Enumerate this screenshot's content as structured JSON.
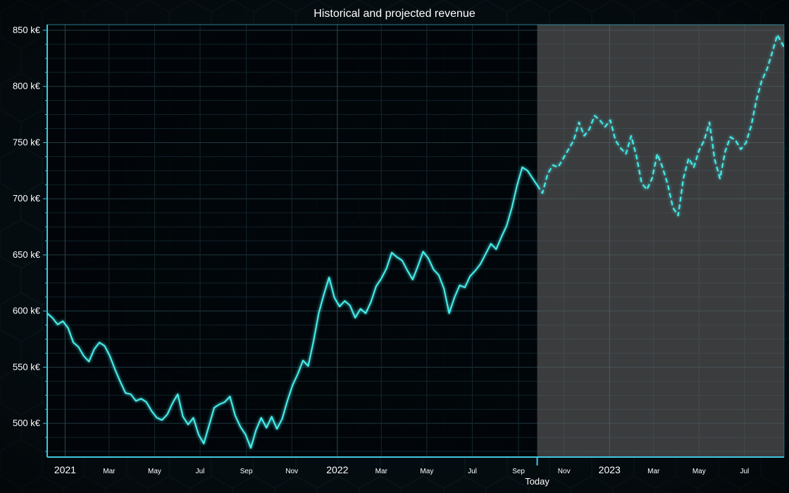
{
  "chart_data": {
    "type": "line",
    "title": "Historical and projected revenue",
    "xlabel": "",
    "ylabel": "",
    "ylim": [
      470,
      855
    ],
    "xlim": [
      "2020-12-08",
      "2023-08-23"
    ],
    "y_ticks": [
      "500 k€",
      "550 k€",
      "600 k€",
      "650 k€",
      "700 k€",
      "750 k€",
      "800 k€",
      "850 k€"
    ],
    "y_tick_values": [
      500,
      550,
      600,
      650,
      700,
      750,
      800,
      850
    ],
    "x_ticks": [
      {
        "date": "2021-01-01",
        "label": "2021",
        "major": true
      },
      {
        "date": "2021-03-01",
        "label": "Mar",
        "major": false
      },
      {
        "date": "2021-05-01",
        "label": "May",
        "major": false
      },
      {
        "date": "2021-07-01",
        "label": "Jul",
        "major": false
      },
      {
        "date": "2021-09-01",
        "label": "Sep",
        "major": false
      },
      {
        "date": "2021-11-01",
        "label": "Nov",
        "major": false
      },
      {
        "date": "2022-01-01",
        "label": "2022",
        "major": true
      },
      {
        "date": "2022-03-01",
        "label": "Mar",
        "major": false
      },
      {
        "date": "2022-05-01",
        "label": "May",
        "major": false
      },
      {
        "date": "2022-07-01",
        "label": "Jul",
        "major": false
      },
      {
        "date": "2022-09-01",
        "label": "Sep",
        "major": false
      },
      {
        "date": "2022-11-01",
        "label": "Nov",
        "major": false
      },
      {
        "date": "2023-01-01",
        "label": "2023",
        "major": true
      },
      {
        "date": "2023-03-01",
        "label": "Mar",
        "major": false
      },
      {
        "date": "2023-05-01",
        "label": "May",
        "major": false
      },
      {
        "date": "2023-07-01",
        "label": "Jul",
        "major": false
      }
    ],
    "today": {
      "date": "2022-09-26",
      "label": "Today"
    },
    "grid": true,
    "legend": "none",
    "series": [
      {
        "role": "historical",
        "style": "solid",
        "color": "#46f0ee",
        "points": [
          [
            "2020-12-08",
            598
          ],
          [
            "2020-12-15",
            594
          ],
          [
            "2020-12-22",
            588
          ],
          [
            "2020-12-29",
            591
          ],
          [
            "2021-01-05",
            585
          ],
          [
            "2021-01-12",
            572
          ],
          [
            "2021-01-19",
            568
          ],
          [
            "2021-01-26",
            560
          ],
          [
            "2021-02-02",
            555
          ],
          [
            "2021-02-09",
            566
          ],
          [
            "2021-02-16",
            572
          ],
          [
            "2021-02-23",
            569
          ],
          [
            "2021-03-02",
            560
          ],
          [
            "2021-03-09",
            548
          ],
          [
            "2021-03-16",
            537
          ],
          [
            "2021-03-23",
            527
          ],
          [
            "2021-03-30",
            526
          ],
          [
            "2021-04-06",
            520
          ],
          [
            "2021-04-13",
            522
          ],
          [
            "2021-04-20",
            519
          ],
          [
            "2021-04-27",
            511
          ],
          [
            "2021-05-04",
            505
          ],
          [
            "2021-05-11",
            503
          ],
          [
            "2021-05-18",
            508
          ],
          [
            "2021-05-25",
            518
          ],
          [
            "2021-06-01",
            526
          ],
          [
            "2021-06-08",
            506
          ],
          [
            "2021-06-15",
            499
          ],
          [
            "2021-06-22",
            505
          ],
          [
            "2021-06-29",
            490
          ],
          [
            "2021-07-06",
            482
          ],
          [
            "2021-07-13",
            498
          ],
          [
            "2021-07-20",
            514
          ],
          [
            "2021-07-27",
            517
          ],
          [
            "2021-08-03",
            519
          ],
          [
            "2021-08-10",
            524
          ],
          [
            "2021-08-17",
            507
          ],
          [
            "2021-08-24",
            497
          ],
          [
            "2021-08-31",
            490
          ],
          [
            "2021-09-07",
            478
          ],
          [
            "2021-09-14",
            494
          ],
          [
            "2021-09-21",
            505
          ],
          [
            "2021-09-28",
            496
          ],
          [
            "2021-10-05",
            506
          ],
          [
            "2021-10-12",
            495
          ],
          [
            "2021-10-19",
            504
          ],
          [
            "2021-10-26",
            520
          ],
          [
            "2021-11-02",
            534
          ],
          [
            "2021-11-09",
            544
          ],
          [
            "2021-11-16",
            556
          ],
          [
            "2021-11-23",
            551
          ],
          [
            "2021-11-30",
            573
          ],
          [
            "2021-12-07",
            598
          ],
          [
            "2021-12-14",
            615
          ],
          [
            "2021-12-21",
            630
          ],
          [
            "2021-12-28",
            612
          ],
          [
            "2022-01-04",
            604
          ],
          [
            "2022-01-11",
            609
          ],
          [
            "2022-01-18",
            605
          ],
          [
            "2022-01-25",
            594
          ],
          [
            "2022-02-01",
            602
          ],
          [
            "2022-02-08",
            598
          ],
          [
            "2022-02-15",
            608
          ],
          [
            "2022-02-22",
            622
          ],
          [
            "2022-03-01",
            629
          ],
          [
            "2022-03-08",
            638
          ],
          [
            "2022-03-15",
            652
          ],
          [
            "2022-03-22",
            648
          ],
          [
            "2022-03-29",
            645
          ],
          [
            "2022-04-05",
            636
          ],
          [
            "2022-04-12",
            628
          ],
          [
            "2022-04-19",
            640
          ],
          [
            "2022-04-26",
            653
          ],
          [
            "2022-05-03",
            647
          ],
          [
            "2022-05-10",
            637
          ],
          [
            "2022-05-17",
            632
          ],
          [
            "2022-05-24",
            620
          ],
          [
            "2022-05-31",
            598
          ],
          [
            "2022-06-07",
            612
          ],
          [
            "2022-06-14",
            623
          ],
          [
            "2022-06-21",
            621
          ],
          [
            "2022-06-28",
            631
          ],
          [
            "2022-07-05",
            636
          ],
          [
            "2022-07-12",
            642
          ],
          [
            "2022-07-19",
            651
          ],
          [
            "2022-07-26",
            660
          ],
          [
            "2022-08-02",
            655
          ],
          [
            "2022-08-09",
            666
          ],
          [
            "2022-08-16",
            676
          ],
          [
            "2022-08-23",
            692
          ],
          [
            "2022-08-30",
            712
          ],
          [
            "2022-09-06",
            728
          ],
          [
            "2022-09-13",
            725
          ],
          [
            "2022-09-20",
            718
          ],
          [
            "2022-09-26",
            712
          ]
        ]
      },
      {
        "role": "projected",
        "style": "dashed",
        "color": "#46f0ee",
        "points": [
          [
            "2022-09-26",
            712
          ],
          [
            "2022-10-03",
            705
          ],
          [
            "2022-10-10",
            722
          ],
          [
            "2022-10-17",
            730
          ],
          [
            "2022-10-24",
            728
          ],
          [
            "2022-10-31",
            736
          ],
          [
            "2022-11-07",
            744
          ],
          [
            "2022-11-14",
            752
          ],
          [
            "2022-11-21",
            768
          ],
          [
            "2022-11-28",
            756
          ],
          [
            "2022-12-05",
            762
          ],
          [
            "2022-12-12",
            774
          ],
          [
            "2022-12-19",
            770
          ],
          [
            "2022-12-26",
            764
          ],
          [
            "2023-01-02",
            770
          ],
          [
            "2023-01-09",
            752
          ],
          [
            "2023-01-16",
            745
          ],
          [
            "2023-01-23",
            740
          ],
          [
            "2023-01-30",
            756
          ],
          [
            "2023-02-06",
            738
          ],
          [
            "2023-02-13",
            714
          ],
          [
            "2023-02-20",
            708
          ],
          [
            "2023-02-27",
            718
          ],
          [
            "2023-03-06",
            740
          ],
          [
            "2023-03-13",
            728
          ],
          [
            "2023-03-20",
            713
          ],
          [
            "2023-03-27",
            692
          ],
          [
            "2023-04-03",
            685
          ],
          [
            "2023-04-10",
            718
          ],
          [
            "2023-04-17",
            736
          ],
          [
            "2023-04-24",
            728
          ],
          [
            "2023-05-01",
            743
          ],
          [
            "2023-05-08",
            752
          ],
          [
            "2023-05-15",
            768
          ],
          [
            "2023-05-22",
            735
          ],
          [
            "2023-05-29",
            718
          ],
          [
            "2023-06-05",
            742
          ],
          [
            "2023-06-12",
            755
          ],
          [
            "2023-06-19",
            752
          ],
          [
            "2023-06-26",
            744
          ],
          [
            "2023-07-03",
            750
          ],
          [
            "2023-07-10",
            765
          ],
          [
            "2023-07-17",
            788
          ],
          [
            "2023-07-24",
            805
          ],
          [
            "2023-07-31",
            815
          ],
          [
            "2023-08-07",
            830
          ],
          [
            "2023-08-14",
            846
          ],
          [
            "2023-08-23",
            835
          ]
        ]
      }
    ]
  }
}
